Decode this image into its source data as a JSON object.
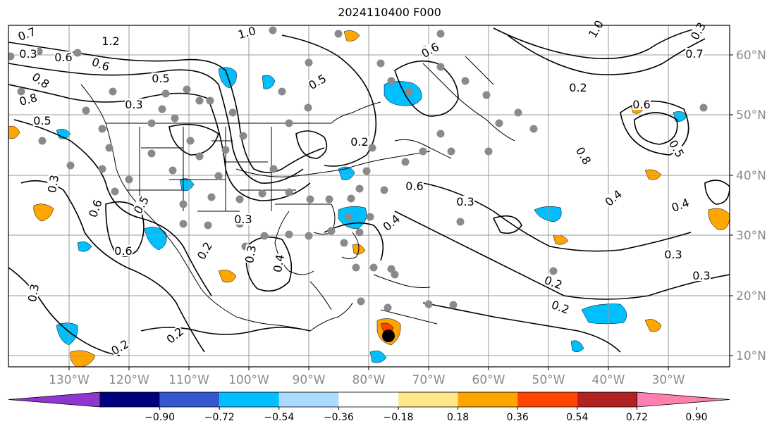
{
  "title": "2024110400 F000",
  "lat_labels": [
    "60°N",
    "50°N",
    "40°N",
    "30°N",
    "20°N",
    "10°N"
  ],
  "lon_labels": [
    "130°W",
    "120°W",
    "110°W",
    "100°W",
    "90°W",
    "80°W",
    "70°W",
    "60°W",
    "50°W",
    "40°W",
    "30°W"
  ],
  "colorbar": {
    "colors": [
      "#8f35d0",
      "#00007f",
      "#3457cf",
      "#00bfff",
      "#aadcff",
      "#ffffff",
      "#ffe68a",
      "#ffa500",
      "#ff4500",
      "#b22222",
      "#ff80b0"
    ],
    "tick_labels": [
      "−0.90",
      "−0.72",
      "−0.54",
      "−0.36",
      "−0.18",
      "0.18",
      "0.36",
      "0.54",
      "0.72",
      "0.90"
    ]
  },
  "contour_labels": [
    "0.7",
    "1.2",
    "0.6",
    "0.8",
    "0.8",
    "0.5",
    "0.6",
    "0.3",
    "0.5",
    "1.0",
    "0.5",
    "0.2",
    "1.0",
    "0.6",
    "0.3",
    "0.5",
    "0.3",
    "0.6",
    "0.6",
    "0.3",
    "0.3",
    "0.4",
    "0.2",
    "0.3",
    "0.4",
    "0.6",
    "0.2",
    "0.8",
    "0.4",
    "0.5",
    "0.3",
    "0.3",
    "0.2",
    "0.2",
    "0.2",
    "0.3",
    "0.4",
    "0.6",
    "0.7",
    "0.2",
    "0.3"
  ]
}
